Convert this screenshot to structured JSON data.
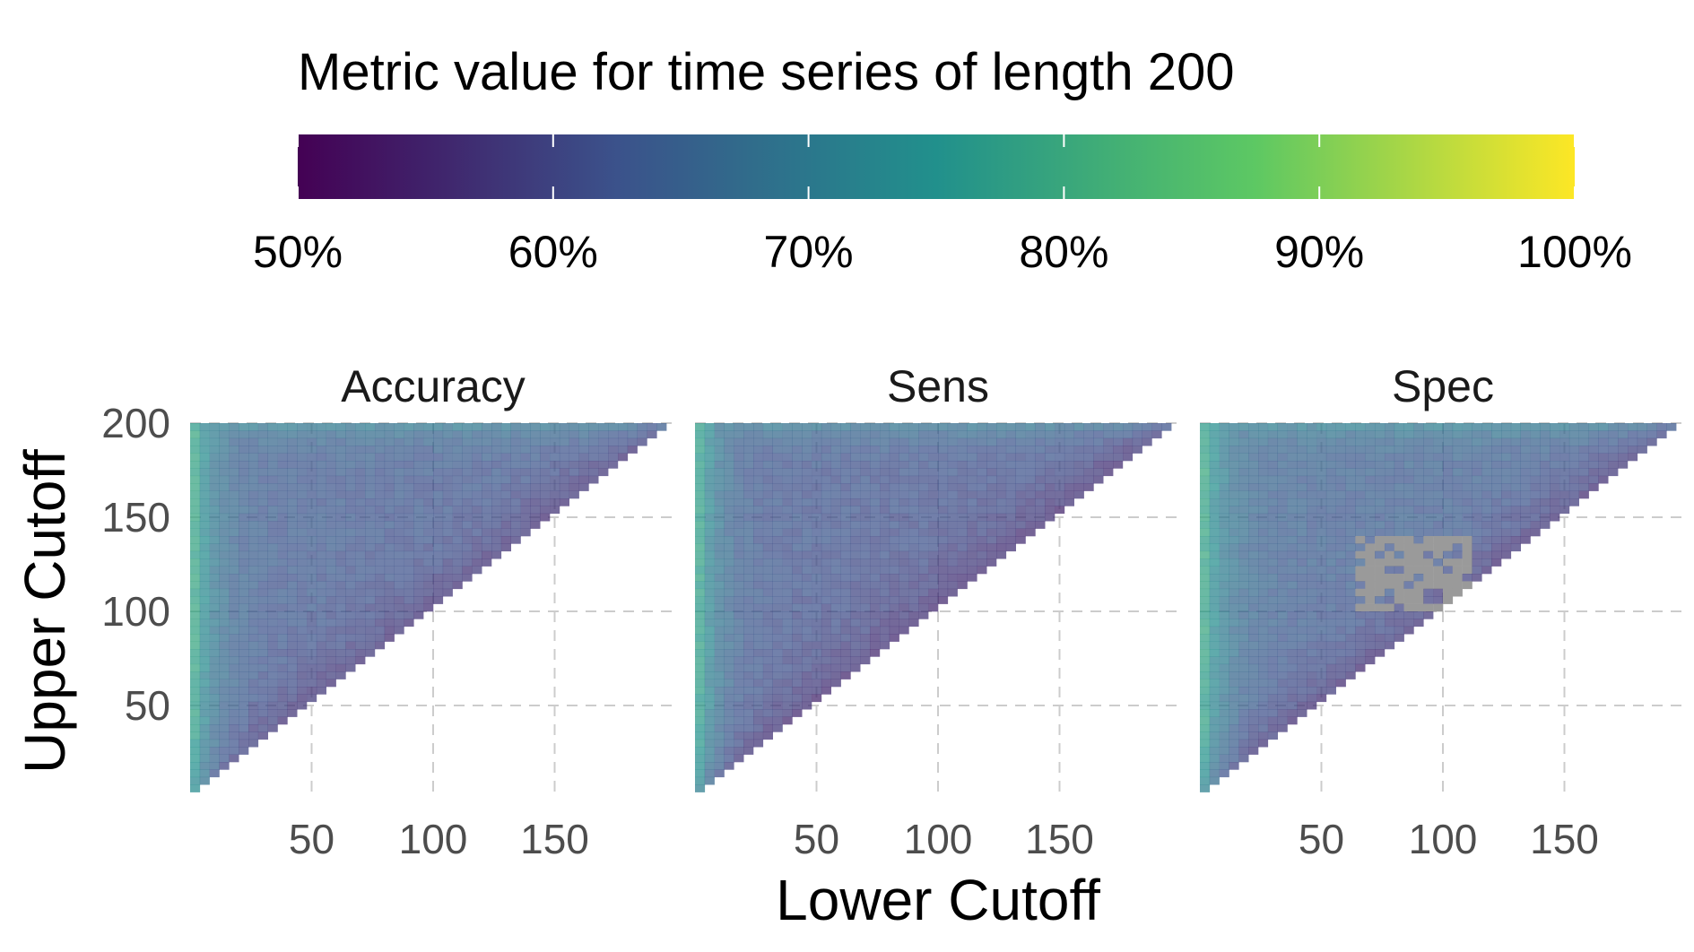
{
  "chart_data": {
    "type": "heatmap",
    "legend": {
      "title": "Metric value for time series of length 200",
      "position": "top",
      "range": [
        0.5,
        1.0
      ],
      "breaks": [
        0.5,
        0.6,
        0.7,
        0.8,
        0.9,
        1.0
      ],
      "labels": [
        "50%",
        "60%",
        "70%",
        "80%",
        "90%",
        "100%"
      ],
      "palette": [
        "#440154",
        "#3b528b",
        "#21908c",
        "#5dc863",
        "#fde725"
      ]
    },
    "xlabel": "Lower Cutoff",
    "ylabel": "Upper Cutoff",
    "x_ticks": [
      50,
      100,
      150
    ],
    "x_tick_labels": [
      "50",
      "100",
      "150"
    ],
    "y_ticks": [
      50,
      100,
      150,
      200
    ],
    "y_tick_labels": [
      "50",
      "100",
      "150",
      "200"
    ],
    "xlim": [
      0,
      200
    ],
    "ylim": [
      0,
      200
    ],
    "grid": true,
    "na_color": "#9a9a9a",
    "panels": [
      {
        "name": "Accuracy",
        "edge_high": 0.82,
        "interior": 0.63,
        "diagonal": 0.56,
        "na_regions": []
      },
      {
        "name": "Sens",
        "edge_high": 0.81,
        "interior": 0.62,
        "diagonal": 0.55,
        "na_regions": []
      },
      {
        "name": "Spec",
        "edge_high": 0.82,
        "interior": 0.64,
        "diagonal": 0.56,
        "na_regions": [
          {
            "lower": [
              64,
              110
            ],
            "upper": [
              100,
              140
            ]
          }
        ]
      }
    ]
  }
}
